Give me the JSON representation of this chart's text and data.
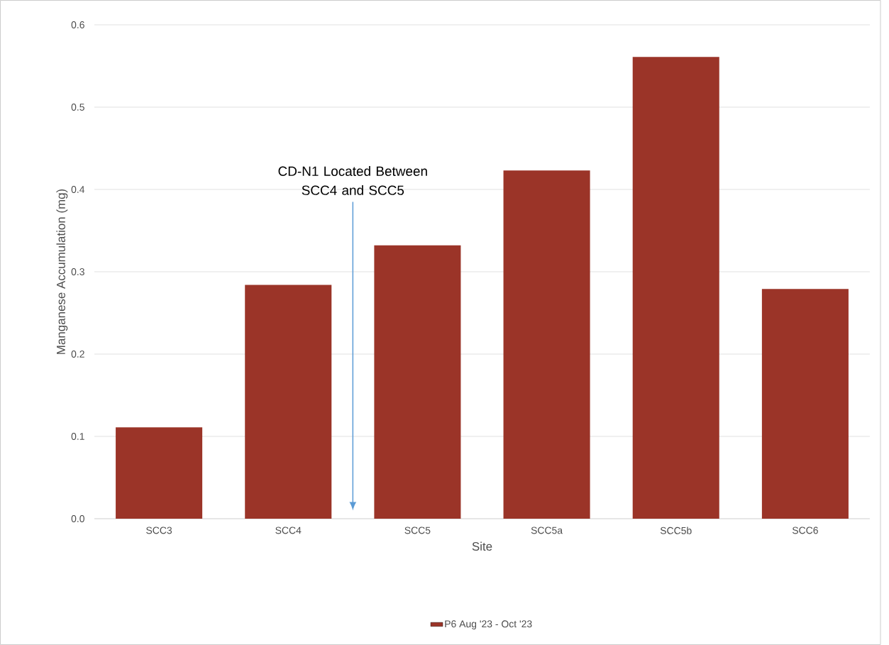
{
  "chart_data": {
    "type": "bar",
    "xlabel": "Site",
    "ylabel": "Manganese Accumulation (mg)",
    "categories": [
      "SCC3",
      "SCC4",
      "SCC5",
      "SCC5a",
      "SCC5b",
      "SCC6"
    ],
    "series": [
      {
        "name": "P6  Aug '23 - Oct '23",
        "color": "#9b3428",
        "values": [
          0.111,
          0.284,
          0.332,
          0.423,
          0.561,
          0.279
        ]
      }
    ],
    "ylim": [
      0,
      0.6
    ],
    "yticks": [
      {
        "value": 0,
        "label": "0.0"
      },
      0.1,
      0.2,
      0.3,
      0.4,
      0.5,
      0.6
    ],
    "grid": "y",
    "legend": "bottom",
    "annotations": [
      "CD-N1 Located Between SCC4 and SCC5"
    ]
  }
}
